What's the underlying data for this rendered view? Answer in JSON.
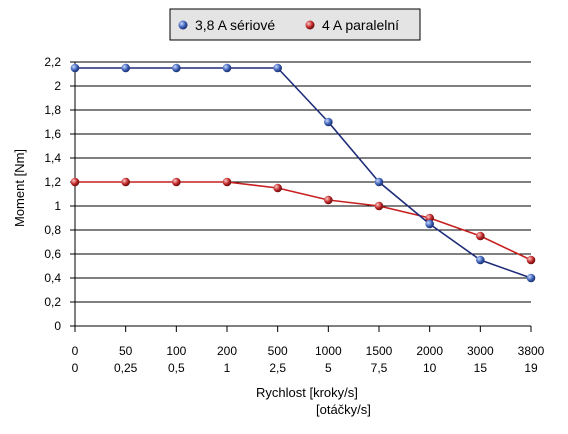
{
  "chart_data": {
    "type": "line",
    "title": "",
    "ylabel": "Moment [Nm]",
    "xlabel_lines": [
      "Rychlost [kroky/s]",
      "[otáčky/s]"
    ],
    "x_categories": [
      "0",
      "50",
      "100",
      "200",
      "500",
      "1000",
      "1500",
      "2000",
      "3000",
      "3800"
    ],
    "x_categories_secondary": [
      "0",
      "0,25",
      "0,5",
      "1",
      "2,5",
      "5",
      "7,5",
      "10",
      "15",
      "19"
    ],
    "ylim": [
      0,
      2.2
    ],
    "y_ticks": [
      "0",
      "0,2",
      "0,4",
      "0,6",
      "0,8",
      "1",
      "1,2",
      "1,4",
      "1,6",
      "1,8",
      "2",
      "2,2"
    ],
    "grid": true,
    "legend_position": "top-center",
    "series": [
      {
        "name": "3,8 A sériové",
        "color": "#1f2d7a",
        "marker_color": "#4a6fc0",
        "values": [
          2.15,
          2.15,
          2.15,
          2.15,
          2.15,
          1.7,
          1.2,
          0.85,
          0.55,
          0.4
        ]
      },
      {
        "name": "4 A paralelní",
        "color": "#c62020",
        "marker_color": "#b82020",
        "values": [
          1.2,
          1.2,
          1.2,
          1.2,
          1.15,
          1.05,
          1.0,
          0.9,
          0.75,
          0.55
        ]
      }
    ]
  }
}
